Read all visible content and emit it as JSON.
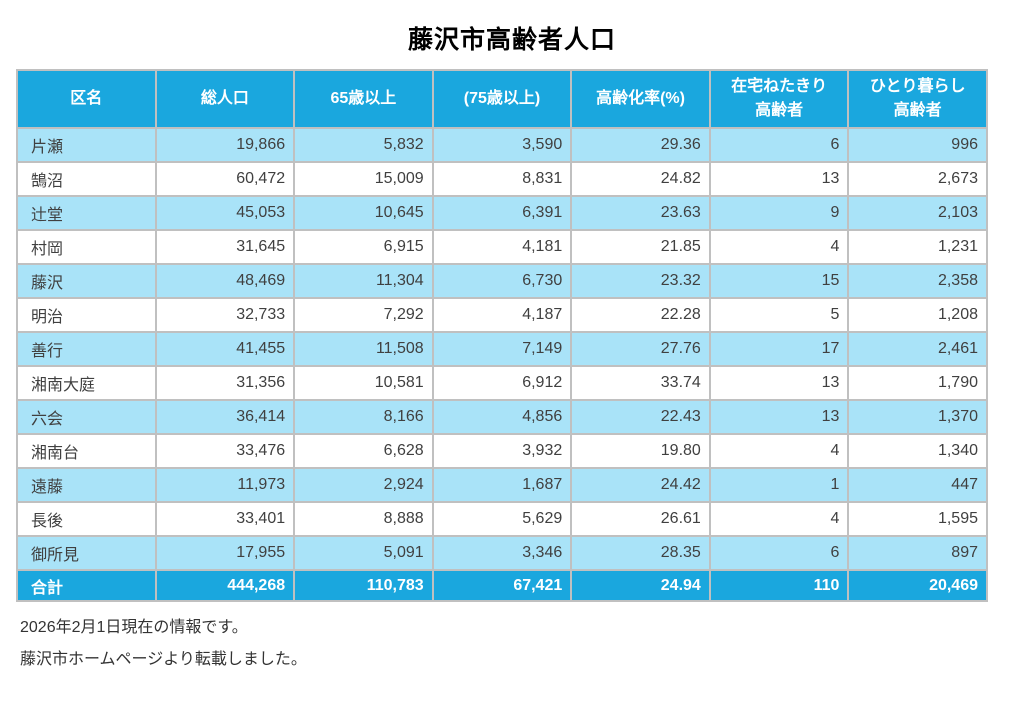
{
  "page": {
    "title": "藤沢市高齢者人口",
    "notes": [
      "2026年2月1日現在の情報です。",
      "藤沢市ホームページより転載しました。"
    ]
  },
  "colors": {
    "header_bg": "#1aa7de",
    "alt_row_bg": "#a9e3f8",
    "total_row_bg": "#1aa7de",
    "border": "#c0c0c0",
    "header_text": "#ffffff",
    "body_text": "#404040"
  },
  "chart_data": {
    "type": "table",
    "title": "藤沢市高齢者人口",
    "columns": [
      {
        "label": "区名",
        "lines": [
          "区名"
        ]
      },
      {
        "label": "総人口",
        "lines": [
          "総人口"
        ]
      },
      {
        "label": "65歳以上",
        "lines": [
          "65歳以上"
        ]
      },
      {
        "label": "(75歳以上)",
        "lines": [
          "(75歳以上)"
        ]
      },
      {
        "label": "高齢化率(%)",
        "lines": [
          "高齢化率(%)"
        ]
      },
      {
        "label": "在宅ねたきり高齢者",
        "lines": [
          "在宅ねたきり",
          "高齢者"
        ]
      },
      {
        "label": "ひとり暮らし高齢者",
        "lines": [
          "ひとり暮らし",
          "高齢者"
        ]
      }
    ],
    "rows": [
      {
        "district": "片瀬",
        "values": [
          "19,866",
          "5,832",
          "3,590",
          "29.36",
          "6",
          "996"
        ]
      },
      {
        "district": "鵠沼",
        "values": [
          "60,472",
          "15,009",
          "8,831",
          "24.82",
          "13",
          "2,673"
        ]
      },
      {
        "district": "辻堂",
        "values": [
          "45,053",
          "10,645",
          "6,391",
          "23.63",
          "9",
          "2,103"
        ]
      },
      {
        "district": "村岡",
        "values": [
          "31,645",
          "6,915",
          "4,181",
          "21.85",
          "4",
          "1,231"
        ]
      },
      {
        "district": "藤沢",
        "values": [
          "48,469",
          "11,304",
          "6,730",
          "23.32",
          "15",
          "2,358"
        ]
      },
      {
        "district": "明治",
        "values": [
          "32,733",
          "7,292",
          "4,187",
          "22.28",
          "5",
          "1,208"
        ]
      },
      {
        "district": "善行",
        "values": [
          "41,455",
          "11,508",
          "7,149",
          "27.76",
          "17",
          "2,461"
        ]
      },
      {
        "district": "湘南大庭",
        "values": [
          "31,356",
          "10,581",
          "6,912",
          "33.74",
          "13",
          "1,790"
        ]
      },
      {
        "district": "六会",
        "values": [
          "36,414",
          "8,166",
          "4,856",
          "22.43",
          "13",
          "1,370"
        ]
      },
      {
        "district": "湘南台",
        "values": [
          "33,476",
          "6,628",
          "3,932",
          "19.80",
          "4",
          "1,340"
        ]
      },
      {
        "district": "遠藤",
        "values": [
          "11,973",
          "2,924",
          "1,687",
          "24.42",
          "1",
          "447"
        ]
      },
      {
        "district": "長後",
        "values": [
          "33,401",
          "8,888",
          "5,629",
          "26.61",
          "4",
          "1,595"
        ]
      },
      {
        "district": "御所見",
        "values": [
          "17,955",
          "5,091",
          "3,346",
          "28.35",
          "6",
          "897"
        ]
      }
    ],
    "total": {
      "label": "合計",
      "values": [
        "444,268",
        "110,783",
        "67,421",
        "24.94",
        "110",
        "20,469"
      ]
    }
  }
}
